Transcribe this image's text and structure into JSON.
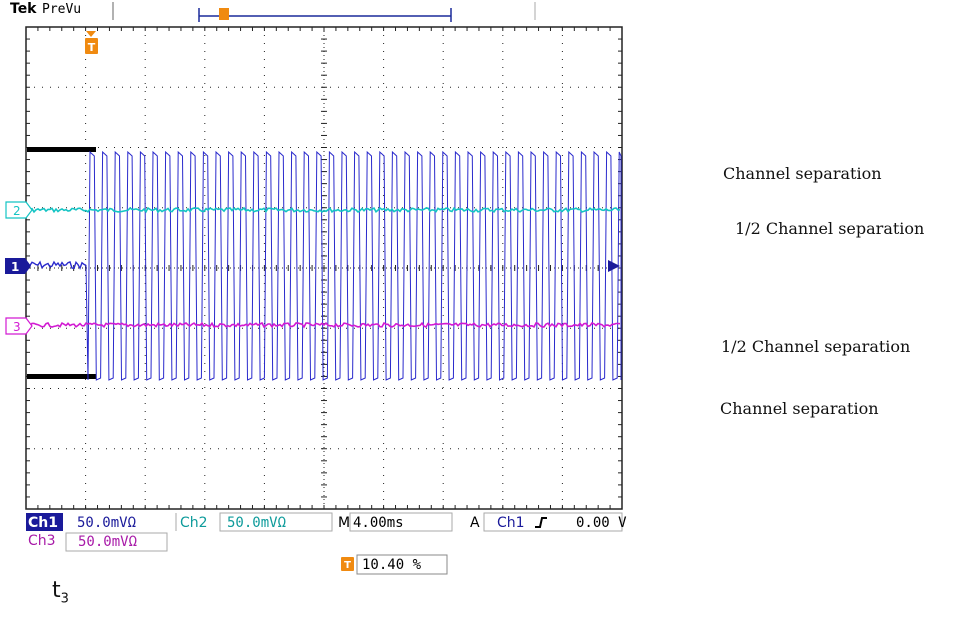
{
  "header": {
    "brand": "Tek",
    "mode": "PreVu"
  },
  "channels": {
    "ch1": {
      "label": "Ch1",
      "scale": "50.0mVΩ",
      "color": "#2a2acc"
    },
    "ch2": {
      "label": "Ch2",
      "scale": "50.0mVΩ",
      "color": "#14c4c4"
    },
    "ch3": {
      "label": "Ch3",
      "scale": "50.0mVΩ",
      "color": "#d21ad2"
    }
  },
  "markers": {
    "ch1": "1",
    "ch2": "2",
    "ch3": "3",
    "trigger": "T"
  },
  "timebase": {
    "prefix": "M",
    "value": "4.00ms"
  },
  "trigger": {
    "mode": "A",
    "source": "Ch1",
    "slope_icon": "rising-edge-icon",
    "level": "0.00 V"
  },
  "trigger_position": "10.40 %",
  "annotations": {
    "a1": "Channel separation",
    "a2": "1/2 Channel separation",
    "a3": "1/2 Channel separation",
    "a4": "Channel separation"
  },
  "caption": {
    "base": "t",
    "sub": "3"
  },
  "colors": {
    "grid": "#222222",
    "ref_bar": "#000000"
  }
}
